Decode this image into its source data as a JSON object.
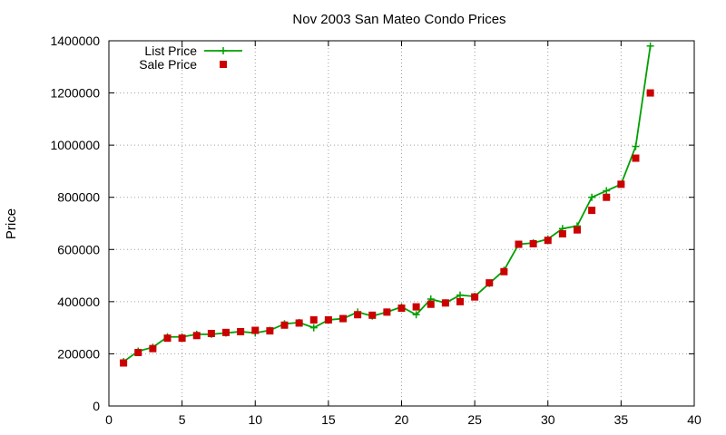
{
  "chart_data": {
    "type": "line",
    "title": "Nov 2003 San Mateo Condo Prices",
    "xlabel": "",
    "ylabel": "Price",
    "xlim": [
      0,
      40
    ],
    "ylim": [
      0,
      1400000
    ],
    "x_ticks": [
      "0",
      "5",
      "10",
      "15",
      "20",
      "25",
      "30",
      "35",
      "40"
    ],
    "y_ticks": [
      "0",
      "200000",
      "400000",
      "600000",
      "800000",
      "1000000",
      "1200000",
      "1400000"
    ],
    "grid": true,
    "legend_position": "top-left",
    "series": [
      {
        "name": "List Price",
        "style": "line+cross",
        "color": "#00a000",
        "x": [
          1,
          2,
          3,
          4,
          5,
          6,
          7,
          8,
          9,
          10,
          11,
          12,
          13,
          14,
          15,
          16,
          17,
          18,
          19,
          20,
          21,
          22,
          23,
          24,
          25,
          26,
          27,
          28,
          29,
          30,
          31,
          32,
          33,
          34,
          35,
          36,
          37
        ],
        "y": [
          170000,
          210000,
          225000,
          265000,
          265000,
          275000,
          275000,
          280000,
          285000,
          280000,
          290000,
          315000,
          320000,
          300000,
          330000,
          335000,
          360000,
          345000,
          360000,
          380000,
          350000,
          410000,
          395000,
          425000,
          420000,
          470000,
          520000,
          620000,
          625000,
          640000,
          680000,
          690000,
          800000,
          825000,
          850000,
          995000,
          1380000
        ]
      },
      {
        "name": "Sale Price",
        "style": "square-points",
        "color": "#cc0000",
        "x": [
          1,
          2,
          3,
          4,
          5,
          6,
          7,
          8,
          9,
          10,
          11,
          12,
          13,
          14,
          15,
          16,
          17,
          18,
          19,
          20,
          21,
          22,
          23,
          24,
          25,
          26,
          27,
          28,
          29,
          30,
          31,
          32,
          33,
          34,
          35,
          36,
          37
        ],
        "y": [
          165000,
          205000,
          220000,
          260000,
          260000,
          270000,
          278000,
          282000,
          285000,
          290000,
          288000,
          310000,
          318000,
          330000,
          330000,
          335000,
          350000,
          348000,
          360000,
          375000,
          380000,
          390000,
          395000,
          400000,
          418000,
          472000,
          515000,
          620000,
          622000,
          635000,
          660000,
          675000,
          750000,
          800000,
          850000,
          950000,
          1200000
        ]
      }
    ]
  }
}
